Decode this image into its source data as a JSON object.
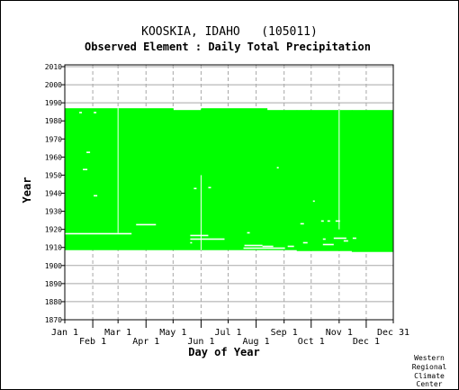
{
  "chart_data": {
    "type": "heatmap",
    "title": "KOOSKIA, IDAHO   (105011)",
    "subtitle": "Observed Element : Daily Total Precipitation",
    "xlabel": "Day of Year",
    "ylabel": "Year",
    "xlim_day": [
      1,
      365
    ],
    "ylim": [
      1870,
      2011
    ],
    "grid": true,
    "y_ticks": [
      1870,
      1880,
      1890,
      1900,
      1910,
      1920,
      1930,
      1940,
      1950,
      1960,
      1970,
      1980,
      1990,
      2000,
      2010
    ],
    "x_ticks_top_row": [
      {
        "label": "Jan 1",
        "day": 1
      },
      {
        "label": "Mar 1",
        "day": 60
      },
      {
        "label": "May 1",
        "day": 121
      },
      {
        "label": "Jul 1",
        "day": 182
      },
      {
        "label": "Sep 1",
        "day": 244
      },
      {
        "label": "Nov 1",
        "day": 305
      },
      {
        "label": "Dec 31",
        "day": 365
      }
    ],
    "x_ticks_bottom_row": [
      {
        "label": "Feb 1",
        "day": 32
      },
      {
        "label": "Apr 1",
        "day": 91
      },
      {
        "label": "Jun 1",
        "day": 152
      },
      {
        "label": "Aug 1",
        "day": 213
      },
      {
        "label": "Oct 1",
        "day": 274
      },
      {
        "label": "Dec 1",
        "day": 335
      }
    ],
    "present_color": "#00ff00",
    "record_blocks": [
      {
        "day_start": 1,
        "day_end": 121,
        "year_start": 1908.5,
        "year_end": 1987
      },
      {
        "day_start": 121,
        "day_end": 152,
        "year_start": 1908.5,
        "year_end": 1986
      },
      {
        "day_start": 152,
        "day_end": 225,
        "year_start": 1908.5,
        "year_end": 1987
      },
      {
        "day_start": 225,
        "day_end": 258,
        "year_start": 1908.5,
        "year_end": 1986
      },
      {
        "day_start": 258,
        "day_end": 319,
        "year_start": 1908,
        "year_end": 1986
      },
      {
        "day_start": 319,
        "day_end": 365,
        "year_start": 1907.5,
        "year_end": 1986
      }
    ],
    "missing_segments": [
      {
        "day_start": 1,
        "day_end": 75,
        "year": 1917.5
      },
      {
        "day_start": 80,
        "day_end": 102,
        "year": 1922.5
      },
      {
        "day_start": 140,
        "day_end": 160,
        "year": 1916.5
      },
      {
        "day_start": 140,
        "day_end": 178,
        "year": 1914.5
      },
      {
        "day_start": 140,
        "day_end": 142,
        "year": 1912.5
      },
      {
        "day_start": 200,
        "day_end": 220,
        "year": 1911
      },
      {
        "day_start": 199,
        "day_end": 245,
        "year": 1909.5
      },
      {
        "day_start": 220,
        "day_end": 232,
        "year": 1910.5
      },
      {
        "day_start": 248,
        "day_end": 255,
        "year": 1910.5
      },
      {
        "day_start": 265,
        "day_end": 270,
        "year": 1912.5
      },
      {
        "day_start": 287,
        "day_end": 290,
        "year": 1914.5
      },
      {
        "day_start": 287,
        "day_end": 299,
        "year": 1911.5
      },
      {
        "day_start": 299,
        "day_end": 313,
        "year": 1915
      },
      {
        "day_start": 285,
        "day_end": 288,
        "year": 1924.5
      },
      {
        "day_start": 292,
        "day_end": 295,
        "year": 1924.5
      },
      {
        "day_start": 301,
        "day_end": 306,
        "year": 1924.5
      },
      {
        "day_start": 310,
        "day_end": 315,
        "year": 1913.5
      },
      {
        "day_start": 320,
        "day_end": 324,
        "year": 1915
      },
      {
        "day_start": 262,
        "day_end": 266,
        "year": 1923
      },
      {
        "day_start": 203,
        "day_end": 206,
        "year": 1918
      },
      {
        "day_start": 17,
        "day_end": 20,
        "year": 1984.5
      },
      {
        "day_start": 33,
        "day_end": 36,
        "year": 1984.5
      },
      {
        "day_start": 25,
        "day_end": 29,
        "year": 1962.5
      },
      {
        "day_start": 21,
        "day_end": 26,
        "year": 1953
      },
      {
        "day_start": 33,
        "day_end": 37,
        "year": 1938.5
      },
      {
        "day_start": 144,
        "day_end": 147,
        "year": 1942.5
      },
      {
        "day_start": 160,
        "day_end": 163,
        "year": 1943
      },
      {
        "day_start": 236,
        "day_end": 238,
        "year": 1954
      },
      {
        "day_start": 276,
        "day_end": 278,
        "year": 1935.5
      }
    ],
    "missing_ticks": [
      {
        "day": 1,
        "year_start": 1935,
        "year_end": 1987
      },
      {
        "day": 60,
        "year_start": 1918,
        "year_end": 1987
      },
      {
        "day": 152,
        "year_start": 1908.5,
        "year_end": 1950
      },
      {
        "day": 305,
        "year_start": 1920,
        "year_end": 1986
      }
    ]
  },
  "footer": {
    "credit_lines": [
      "Western",
      "Regional",
      "Climate",
      "Center"
    ]
  }
}
